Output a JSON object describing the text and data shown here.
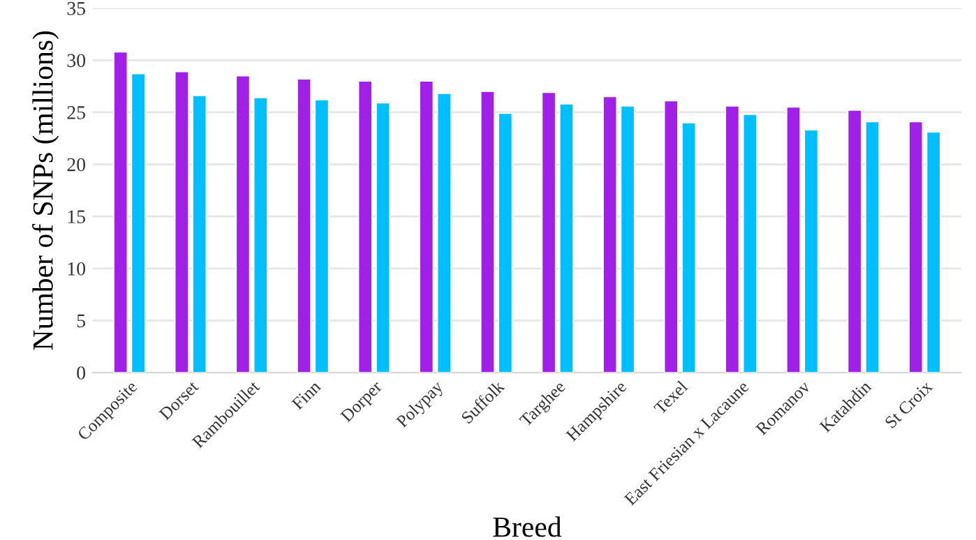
{
  "chart_data": {
    "type": "bar",
    "xlabel": "Breed",
    "ylabel": "Number of SNPs (millions)",
    "categories": [
      "Composite",
      "Dorset",
      "Rambouillet",
      "Finn",
      "Dorper",
      "Polypay",
      "Suffolk",
      "Targhee",
      "Hampshire",
      "Texel",
      "East Friesian x Lacaune",
      "Romanov",
      "Katahdin",
      "St Croix"
    ],
    "series": [
      {
        "color": "#a020e8",
        "values": [
          30.8,
          28.9,
          28.5,
          28.2,
          28.0,
          28.0,
          27.0,
          26.9,
          26.5,
          26.1,
          25.6,
          25.5,
          25.2,
          24.1
        ]
      },
      {
        "color": "#00bfff",
        "values": [
          28.7,
          26.6,
          26.4,
          26.2,
          25.9,
          26.8,
          24.9,
          25.8,
          25.6,
          24.0,
          24.8,
          23.3,
          24.1,
          23.1
        ]
      }
    ],
    "ylim": [
      0,
      35
    ],
    "yticks": [
      0,
      5,
      10,
      15,
      20,
      25,
      30,
      35
    ],
    "grid": "y"
  }
}
